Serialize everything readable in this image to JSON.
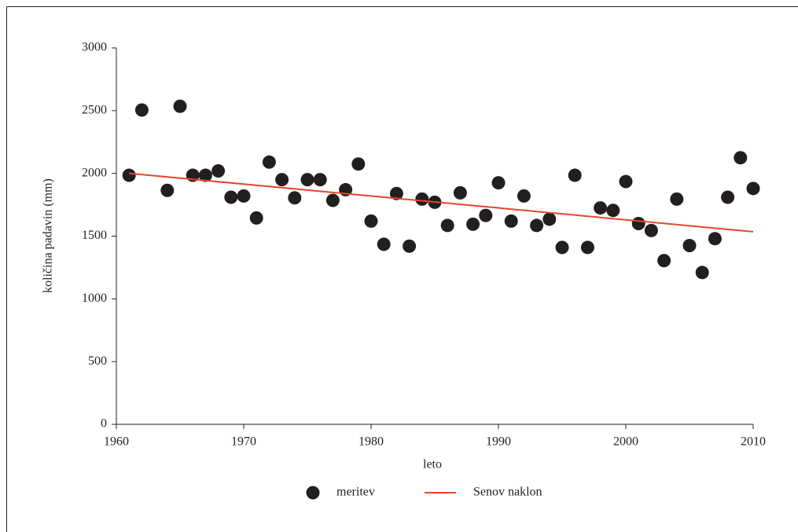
{
  "chart_data": {
    "type": "scatter",
    "xlabel": "leto",
    "ylabel": "količina padavin (mm)",
    "xlim": [
      1960,
      2010
    ],
    "xticks": [
      1960,
      1970,
      1980,
      1990,
      2000,
      2010
    ],
    "ylim": [
      0,
      3000
    ],
    "yticks": [
      0,
      500,
      1000,
      1500,
      2000,
      2500,
      3000
    ],
    "legend": "bottom",
    "series": [
      {
        "name": "meritev",
        "color": "#231f20",
        "mark": "dot",
        "x": [
          1961,
          1962,
          1964,
          1965,
          1966,
          1967,
          1968,
          1969,
          1970,
          1971,
          1972,
          1973,
          1974,
          1975,
          1976,
          1977,
          1978,
          1979,
          1980,
          1981,
          1982,
          1983,
          1984,
          1985,
          1986,
          1987,
          1988,
          1989,
          1990,
          1991,
          1992,
          1993,
          1994,
          1995,
          1996,
          1997,
          1998,
          1999,
          2000,
          2001,
          2002,
          2003,
          2004,
          2005,
          2006,
          2007,
          2008,
          2009,
          2010
        ],
        "values": [
          1985,
          2505,
          1865,
          2535,
          1985,
          1985,
          2020,
          1810,
          1820,
          1645,
          2090,
          1950,
          1805,
          1950,
          1950,
          1785,
          1870,
          2075,
          1620,
          1435,
          1840,
          1420,
          1795,
          1770,
          1585,
          1845,
          1595,
          1665,
          1925,
          1620,
          1820,
          1585,
          1635,
          1410,
          1985,
          1410,
          1725,
          1705,
          1935,
          1600,
          1545,
          1305,
          1795,
          1425,
          1210,
          1480,
          1810,
          2125,
          1880
        ]
      },
      {
        "name": "Senov naklon",
        "color": "#e8452c",
        "mark": "line",
        "x": [
          1961,
          2010
        ],
        "values": [
          2000,
          1535
        ]
      }
    ]
  }
}
